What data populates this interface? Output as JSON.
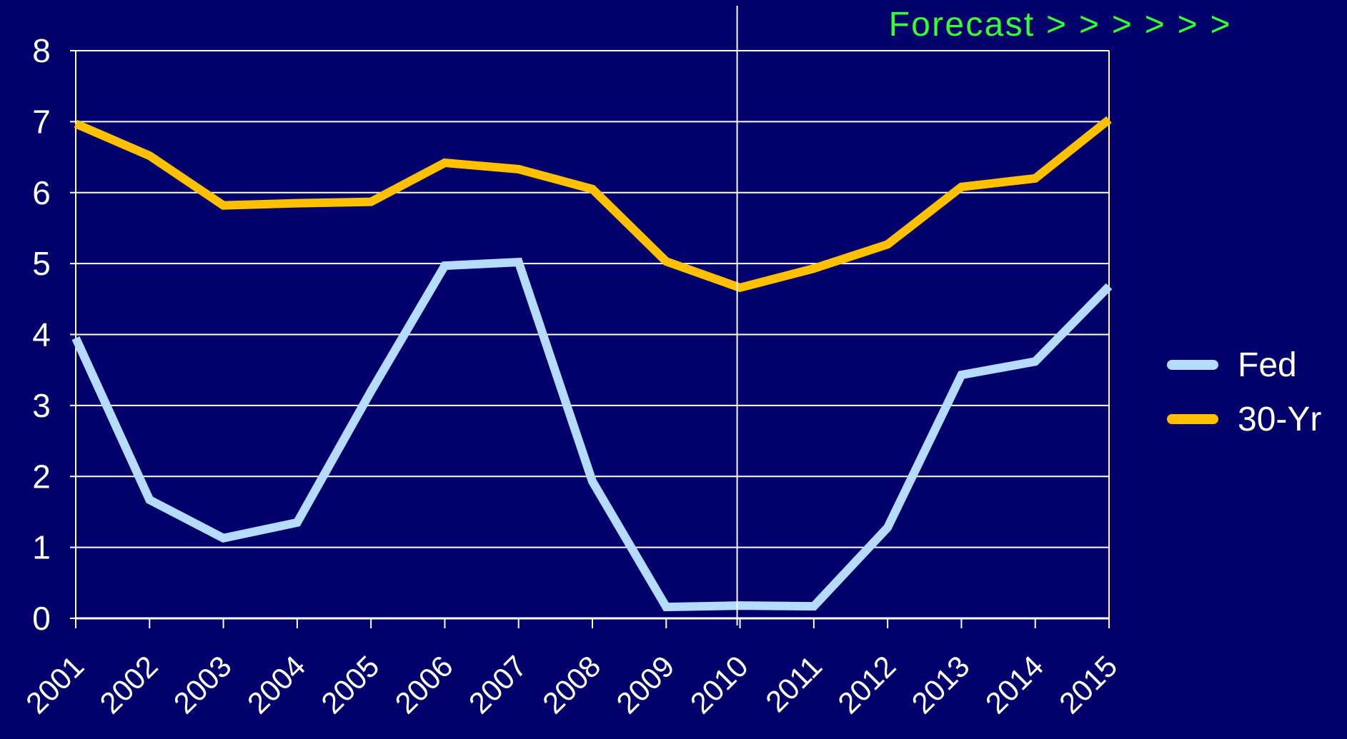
{
  "chart_data": {
    "type": "line",
    "title": "",
    "xlabel": "",
    "ylabel": "",
    "categories": [
      "2001",
      "2002",
      "2003",
      "2004",
      "2005",
      "2006",
      "2007",
      "2008",
      "2009",
      "2010",
      "2011",
      "2012",
      "2013",
      "2014",
      "2015"
    ],
    "yticks": [
      "0",
      "1",
      "2",
      "3",
      "4",
      "5",
      "6",
      "7",
      "8"
    ],
    "ylim": [
      0,
      8
    ],
    "grid": true,
    "legend_position": "right",
    "series": [
      {
        "name": "Fed",
        "color": "#b5dcff",
        "values": [
          3.95,
          1.67,
          1.13,
          1.35,
          3.2,
          4.97,
          5.02,
          1.93,
          0.16,
          0.18,
          0.17,
          1.28,
          3.43,
          3.62,
          4.68
        ]
      },
      {
        "name": "30-Yr",
        "color": "#ffc000",
        "values": [
          6.97,
          6.52,
          5.82,
          5.85,
          5.87,
          6.42,
          6.33,
          6.05,
          5.03,
          4.66,
          4.93,
          5.27,
          6.08,
          6.2,
          7.03
        ]
      }
    ],
    "annotations": {
      "forecast_text": "Forecast > > > > > >",
      "forecast_color": "#33ff33",
      "forecast_starts_at": "2010"
    },
    "background_color": "#02006b",
    "grid_color": "#ffffff"
  }
}
